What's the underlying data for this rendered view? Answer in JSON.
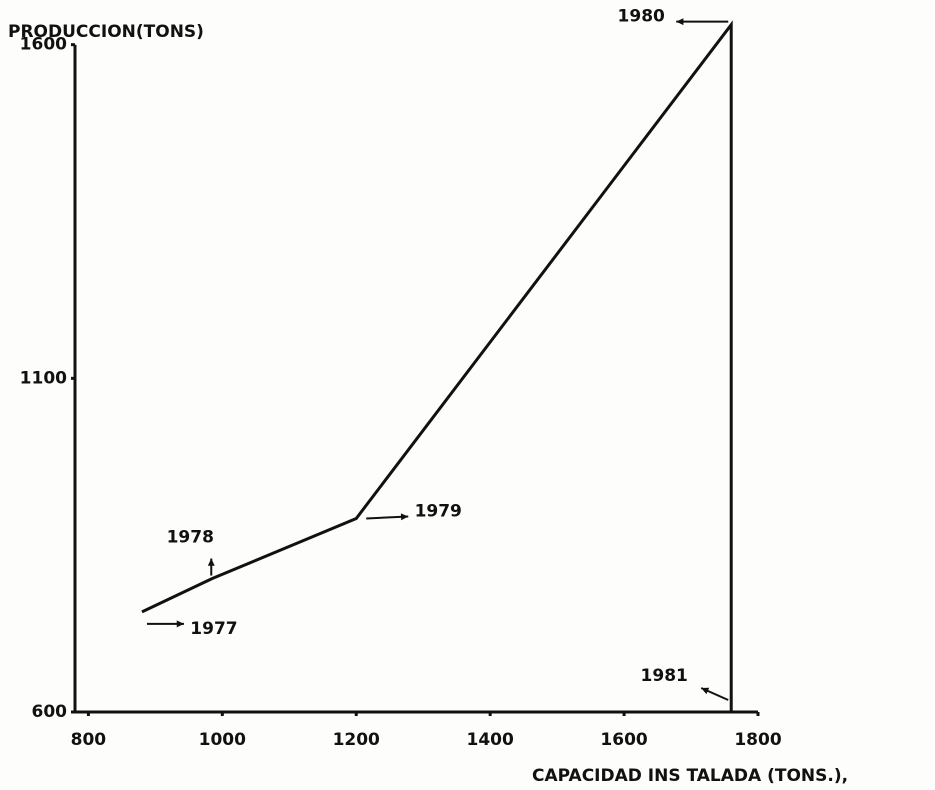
{
  "chart_data": {
    "type": "line",
    "y_label": "PRODUCCION(TONS)",
    "x_label": "CAPACIDAD INS TALADA (TONS.),",
    "x": [
      880,
      985,
      1200,
      1760,
      1760
    ],
    "series": [
      {
        "values": [
          750,
          800,
          890,
          1630,
          600
        ],
        "color": "#111111",
        "point_labels": [
          "1977",
          "1978",
          "1979",
          "1980",
          "1981"
        ]
      }
    ],
    "xlim": [
      780,
      1800
    ],
    "xticks": [
      800,
      1000,
      1200,
      1400,
      1600,
      1800
    ],
    "ylim": [
      600,
      1640
    ],
    "yticks": [
      600,
      1100,
      1600
    ],
    "grid": false
  }
}
